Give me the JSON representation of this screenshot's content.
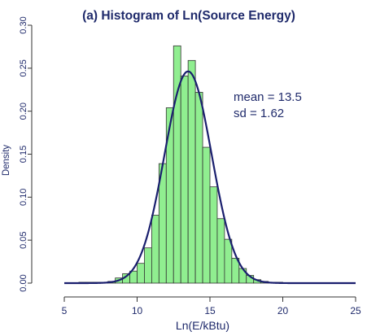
{
  "chart_data": {
    "type": "bar",
    "title": "(a)  Histogram of Ln(Source Energy)",
    "xlabel": "Ln(E/kBtu)",
    "ylabel": "Density",
    "xlim": [
      5,
      25
    ],
    "ylim": [
      0,
      0.3
    ],
    "xticks": [
      "5",
      "10",
      "15",
      "20",
      "25"
    ],
    "yticks": [
      "0.00",
      "0.05",
      "0.10",
      "0.15",
      "0.20",
      "0.25",
      "0.30"
    ],
    "bin_width": 0.5,
    "bins": [
      {
        "x0": 6.0,
        "value": 0.001
      },
      {
        "x0": 6.5,
        "value": 0.001
      },
      {
        "x0": 7.0,
        "value": 0.001
      },
      {
        "x0": 7.5,
        "value": 0.001
      },
      {
        "x0": 8.0,
        "value": 0.002
      },
      {
        "x0": 8.5,
        "value": 0.006
      },
      {
        "x0": 9.0,
        "value": 0.011
      },
      {
        "x0": 9.5,
        "value": 0.014
      },
      {
        "x0": 10.0,
        "value": 0.023
      },
      {
        "x0": 10.5,
        "value": 0.041
      },
      {
        "x0": 11.0,
        "value": 0.079
      },
      {
        "x0": 11.5,
        "value": 0.139
      },
      {
        "x0": 12.0,
        "value": 0.204
      },
      {
        "x0": 12.5,
        "value": 0.276
      },
      {
        "x0": 13.0,
        "value": 0.241
      },
      {
        "x0": 13.5,
        "value": 0.259
      },
      {
        "x0": 14.0,
        "value": 0.222
      },
      {
        "x0": 14.5,
        "value": 0.158
      },
      {
        "x0": 15.0,
        "value": 0.112
      },
      {
        "x0": 15.5,
        "value": 0.075
      },
      {
        "x0": 16.0,
        "value": 0.051
      },
      {
        "x0": 16.5,
        "value": 0.029
      },
      {
        "x0": 17.0,
        "value": 0.017
      },
      {
        "x0": 17.5,
        "value": 0.009
      },
      {
        "x0": 18.0,
        "value": 0.004
      },
      {
        "x0": 18.5,
        "value": 0.002
      },
      {
        "x0": 19.0,
        "value": 0.001
      },
      {
        "x0": 19.5,
        "value": 0.001
      }
    ],
    "density_curve": {
      "type": "normal",
      "mean": 13.5,
      "sd": 1.62
    },
    "annotations": [
      "mean = 13.5",
      "sd = 1.62"
    ],
    "bar_color": "#90ee90",
    "curve_color": "#1a1f6e",
    "grid": false
  }
}
